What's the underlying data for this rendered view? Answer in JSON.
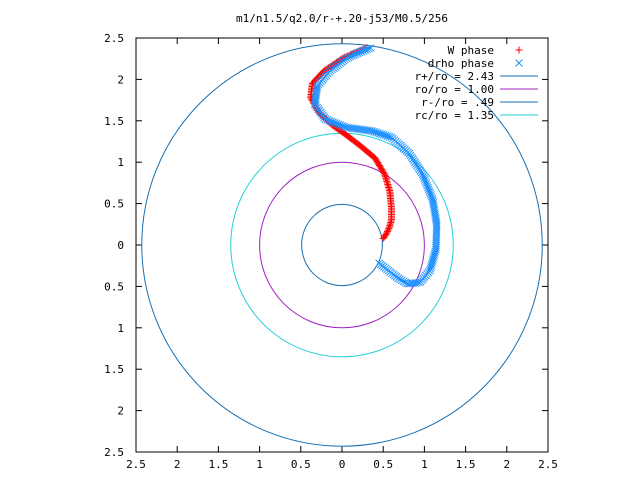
{
  "chart_data": {
    "type": "scatter",
    "title": "m1/n1.5/q2.0/r-+.20-j53/M0.5/256",
    "xlabel": "",
    "ylabel": "",
    "xlim": [
      -2.5,
      2.5
    ],
    "ylim": [
      -2.5,
      2.5
    ],
    "x_tick_labels": [
      "2.5",
      "2",
      "1.5",
      "1",
      "0.5",
      "0",
      "0.5",
      "1",
      "1.5",
      "2",
      "2.5"
    ],
    "y_tick_labels": [
      "2.5",
      "2",
      "1.5",
      "1",
      "0.5",
      "0",
      "0.5",
      "1",
      "1.5",
      "2",
      "2.5"
    ],
    "grid": false,
    "legend_position": "top-right",
    "series": [
      {
        "name": "W phase",
        "kind": "points",
        "marker": "+",
        "color": "#ff0000",
        "path": [
          [
            0.5,
            0.08
          ],
          [
            0.53,
            0.12
          ],
          [
            0.57,
            0.2
          ],
          [
            0.6,
            0.3
          ],
          [
            0.6,
            0.45
          ],
          [
            0.58,
            0.65
          ],
          [
            0.52,
            0.85
          ],
          [
            0.4,
            1.05
          ],
          [
            0.22,
            1.2
          ],
          [
            0.05,
            1.33
          ],
          [
            -0.12,
            1.45
          ],
          [
            -0.28,
            1.6
          ],
          [
            -0.38,
            1.78
          ],
          [
            -0.36,
            1.95
          ],
          [
            -0.22,
            2.1
          ],
          [
            0.0,
            2.25
          ],
          [
            0.15,
            2.32
          ],
          [
            0.3,
            2.38
          ]
        ],
        "count": 160
      },
      {
        "name": "drho phase",
        "kind": "points",
        "marker": "x",
        "color": "#1e90ff",
        "path": [
          [
            0.45,
            -0.22
          ],
          [
            0.55,
            -0.3
          ],
          [
            0.68,
            -0.4
          ],
          [
            0.8,
            -0.47
          ],
          [
            0.95,
            -0.45
          ],
          [
            1.07,
            -0.3
          ],
          [
            1.14,
            -0.05
          ],
          [
            1.15,
            0.25
          ],
          [
            1.1,
            0.55
          ],
          [
            0.98,
            0.85
          ],
          [
            0.82,
            1.1
          ],
          [
            0.6,
            1.3
          ],
          [
            0.35,
            1.38
          ],
          [
            0.05,
            1.42
          ],
          [
            -0.2,
            1.52
          ],
          [
            -0.33,
            1.7
          ],
          [
            -0.3,
            1.92
          ],
          [
            -0.15,
            2.1
          ],
          [
            0.05,
            2.25
          ],
          [
            0.22,
            2.33
          ],
          [
            0.35,
            2.38
          ]
        ],
        "count": 190
      },
      {
        "name": "r+/ro = 2.43",
        "kind": "circle",
        "r": 2.43,
        "color": "#1a6fb0"
      },
      {
        "name": "ro/ro = 1.00",
        "kind": "circle",
        "r": 1.0,
        "color": "#a020c0"
      },
      {
        "name": "r-/ro = .49",
        "kind": "circle",
        "r": 0.49,
        "color": "#1a6fb0"
      },
      {
        "name": "rc/ro = 1.35",
        "kind": "circle",
        "r": 1.35,
        "color": "#22d0d8"
      }
    ]
  }
}
